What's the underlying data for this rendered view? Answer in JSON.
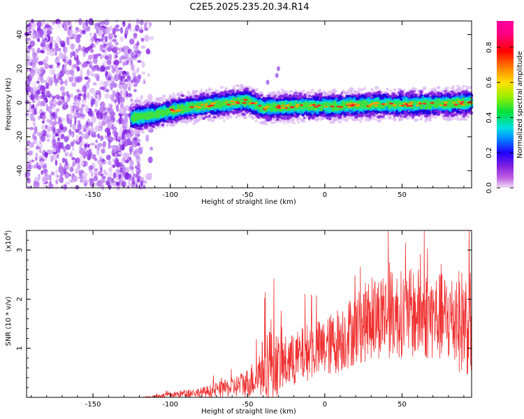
{
  "page_title": "C2E5.2025.235.20.34.R14",
  "chart_data": [
    {
      "type": "heatmap",
      "title": "C2E5.2025.235.20.34.R14",
      "xlabel": "Height of straight line (km)",
      "ylabel": "Frequency (Hz)",
      "xlim": [
        -193,
        95
      ],
      "ylim": [
        -50,
        48
      ],
      "xticks": [
        -150,
        -100,
        -50,
        0,
        50
      ],
      "yticks": [
        -40,
        -20,
        0,
        20,
        40
      ],
      "track_center_hz": [
        [
          -125,
          -9
        ],
        [
          -110,
          -7
        ],
        [
          -90,
          -3
        ],
        [
          -70,
          -1
        ],
        [
          -50,
          1
        ],
        [
          -40,
          -3
        ],
        [
          -20,
          -2
        ],
        [
          0,
          -2
        ],
        [
          30,
          -1
        ],
        [
          60,
          -1
        ],
        [
          95,
          0
        ]
      ],
      "noise_region_km": [
        -193,
        -120
      ],
      "colorbar": {
        "label": "Normalized spectral amplitude",
        "ticks": [
          "0.0",
          "0.2",
          "0.4",
          "0.6",
          "0.8"
        ],
        "range": [
          0,
          0.95
        ]
      }
    },
    {
      "type": "line",
      "xlabel": "Height of straight line (km)",
      "ylabel": "SNR (10 * v/v)",
      "scale_label": "(x10",
      "scale_exp": "4",
      "xlim": [
        -193,
        95
      ],
      "ylim": [
        0,
        3.4
      ],
      "xticks": [
        -150,
        -100,
        -50,
        0,
        50
      ],
      "yticks": [
        "1",
        "2",
        "3"
      ],
      "ytick_values": [
        1,
        2,
        3
      ],
      "series_color": "#f03030",
      "snr_envelope": {
        "x": [
          -193,
          -120,
          -110,
          -100,
          -90,
          -80,
          -70,
          -60,
          -50,
          -45,
          -40,
          -35,
          -30,
          -20,
          -10,
          0,
          10,
          20,
          30,
          40,
          50,
          60,
          70,
          80,
          90,
          95
        ],
        "median": [
          0.0,
          0.0,
          0.02,
          0.05,
          0.08,
          0.1,
          0.15,
          0.2,
          0.3,
          0.4,
          0.6,
          0.8,
          0.65,
          0.75,
          0.95,
          1.0,
          1.2,
          1.4,
          1.6,
          1.7,
          1.7,
          1.7,
          1.65,
          1.6,
          1.55,
          1.5
        ],
        "spread": [
          0.0,
          0.0,
          0.02,
          0.06,
          0.08,
          0.1,
          0.15,
          0.2,
          0.3,
          0.4,
          0.6,
          0.9,
          0.6,
          0.55,
          0.6,
          0.6,
          0.7,
          0.75,
          0.85,
          0.9,
          0.9,
          0.95,
          0.9,
          0.95,
          1.1,
          1.1
        ]
      }
    }
  ]
}
